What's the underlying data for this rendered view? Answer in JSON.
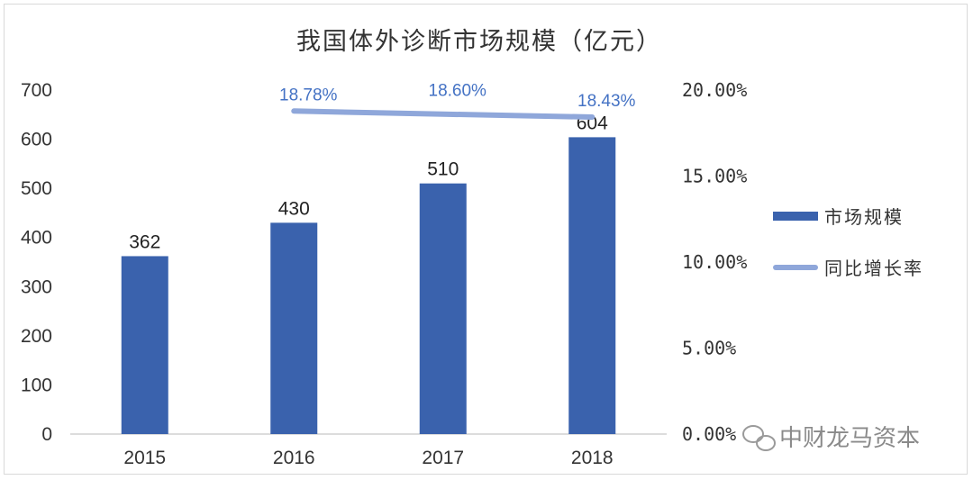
{
  "chart_data": {
    "type": "bar",
    "title": "我国体外诊断市场规模（亿元）",
    "categories": [
      "2015",
      "2016",
      "2017",
      "2018"
    ],
    "series": [
      {
        "name": "市场规模",
        "type": "bar",
        "axis": "left",
        "color": "#3a62ad",
        "values": [
          362,
          430,
          510,
          604
        ],
        "labels": [
          "362",
          "430",
          "510",
          "604"
        ]
      },
      {
        "name": "同比增长率",
        "type": "line",
        "axis": "right",
        "color": "#8fa7da",
        "values": [
          null,
          0.1878,
          0.186,
          0.1843
        ],
        "labels": [
          "",
          "18.78%",
          "18.60%",
          "18.43%"
        ]
      }
    ],
    "ylim": [
      0,
      700
    ],
    "yticks": [
      "0",
      "100",
      "200",
      "300",
      "400",
      "500",
      "600",
      "700"
    ],
    "y2lim": [
      0,
      0.2
    ],
    "y2ticks": [
      "0.00%",
      "5.00%",
      "10.00%",
      "15.00%",
      "20.00%"
    ],
    "legend_position": "right"
  },
  "watermark": {
    "text": "中财龙马资本",
    "icon": "wechat-icon"
  }
}
